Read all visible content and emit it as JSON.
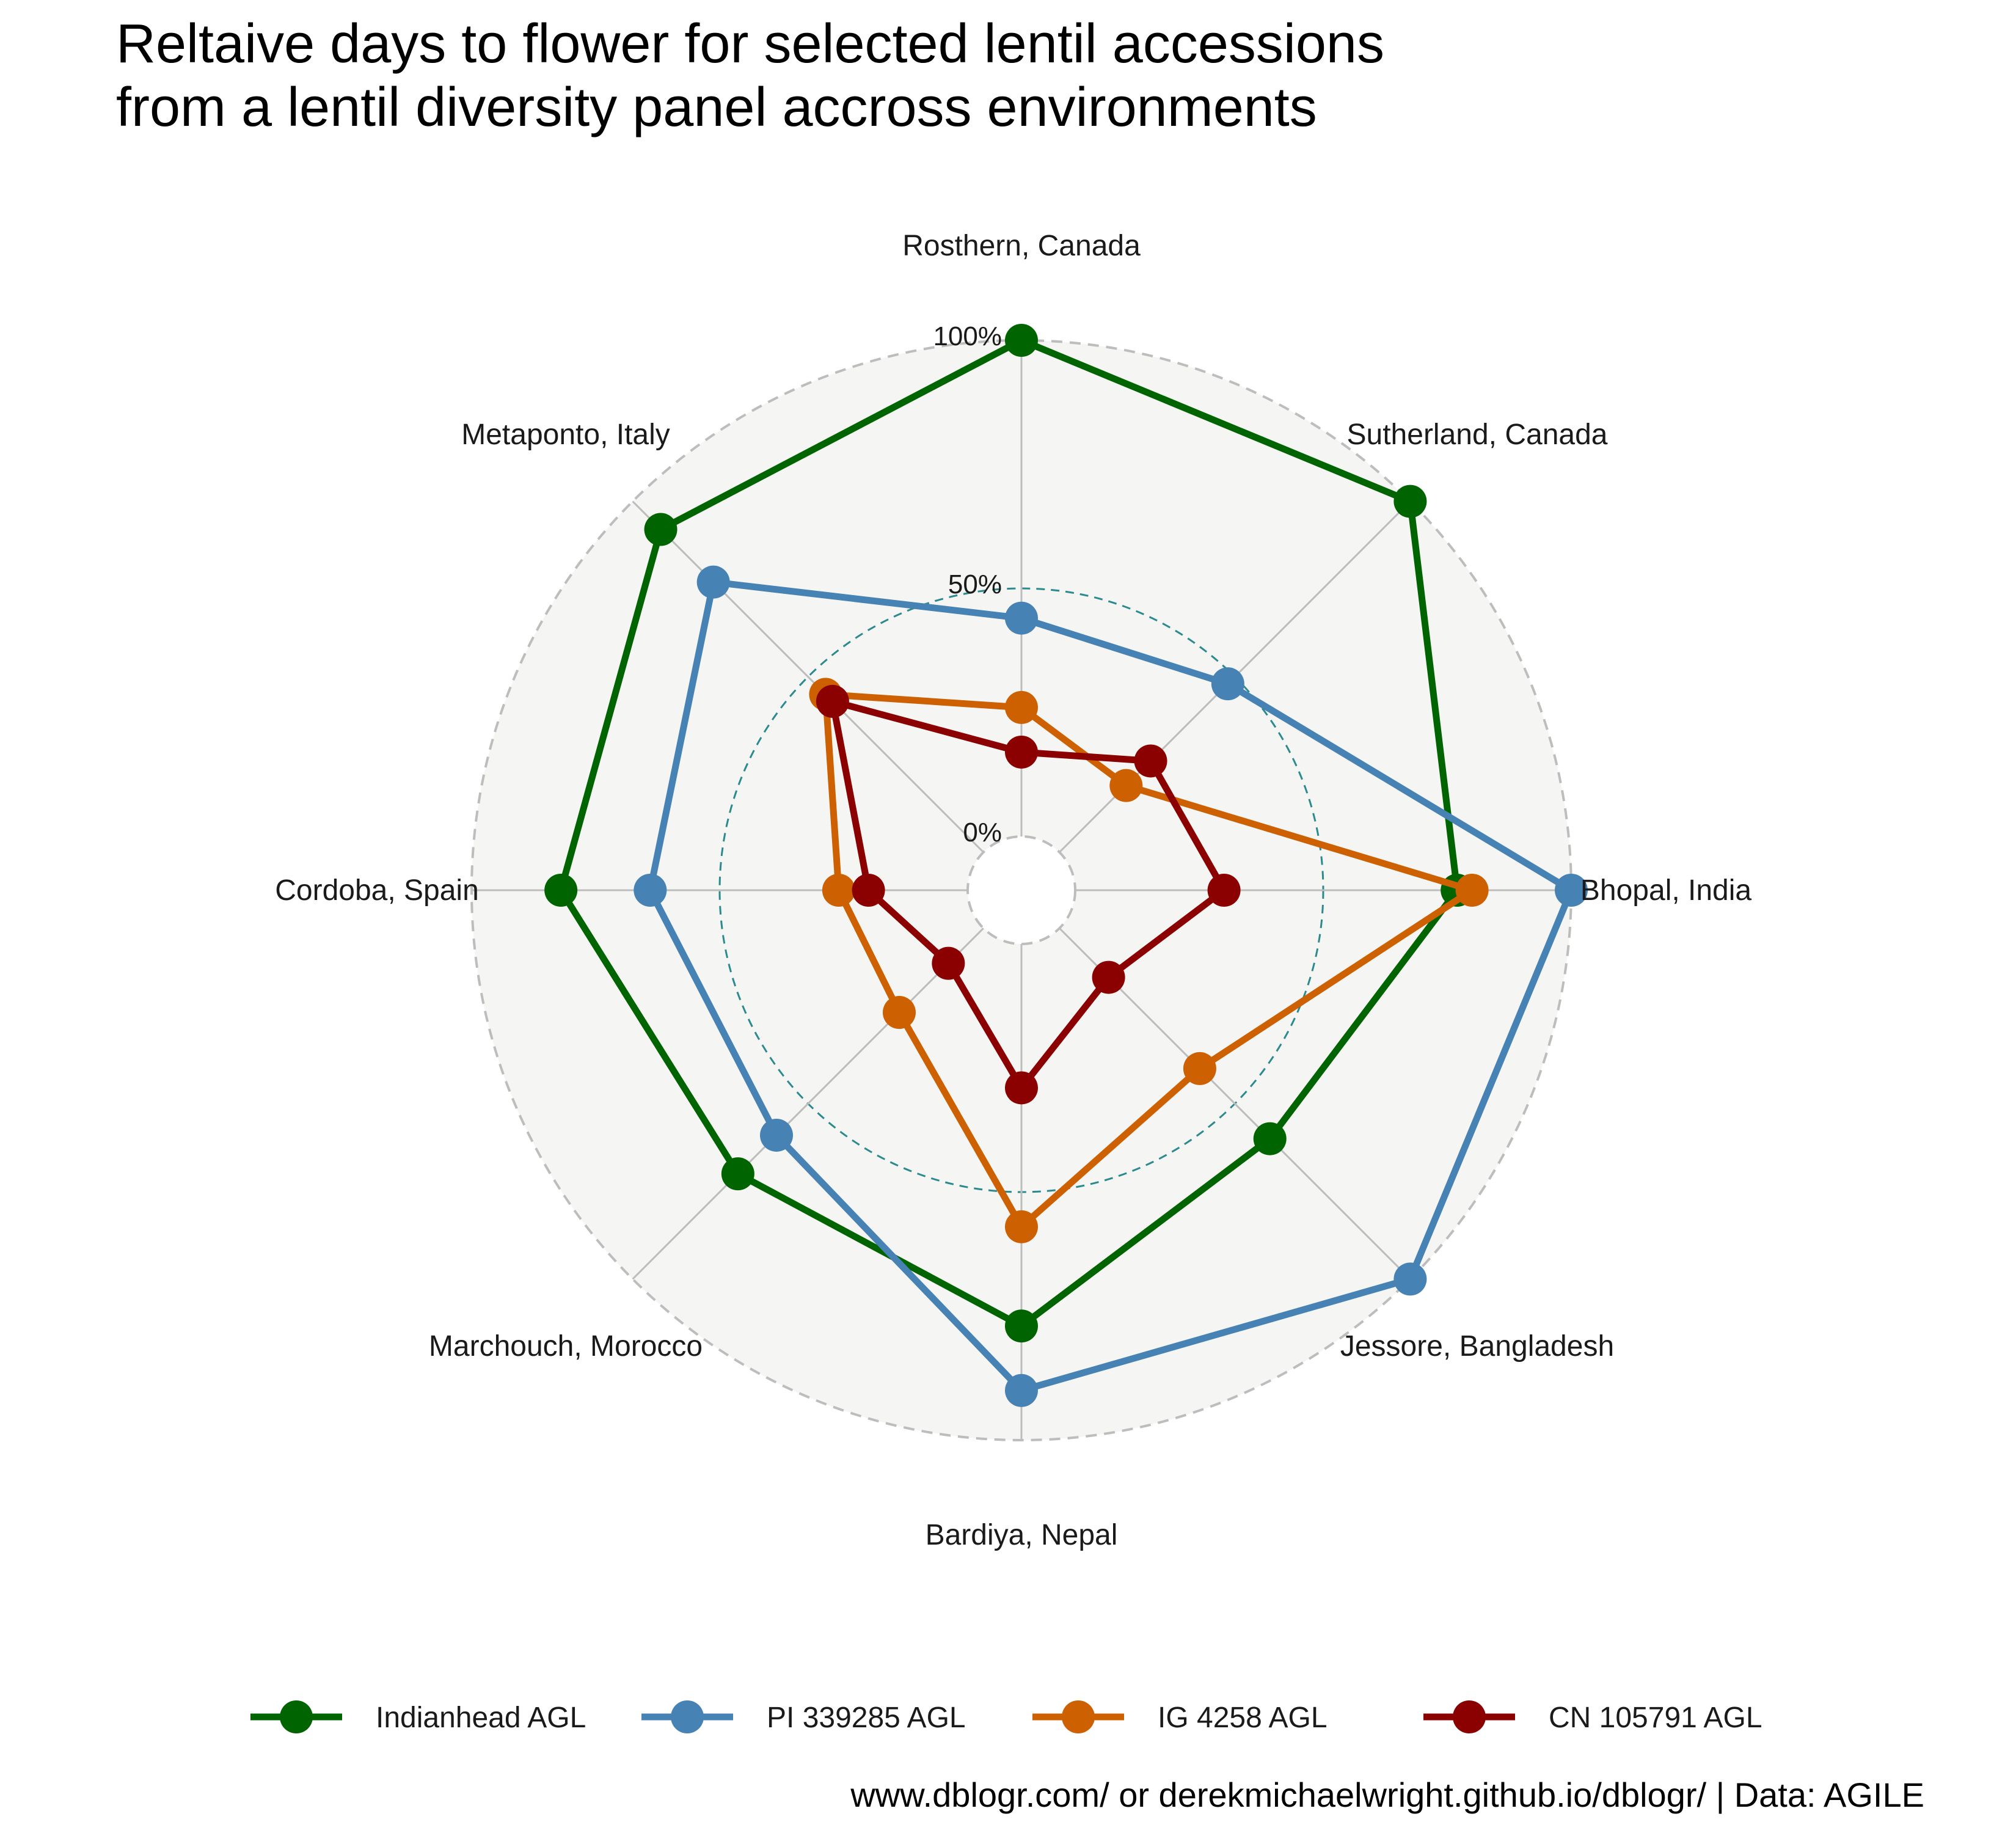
{
  "chart_data": {
    "type": "radar",
    "title": "Reltaive days to flower for selected lentil accessions\nfrom a lentil diversity panel accross environments",
    "caption": "www.dblogr.com/ or derekmichaelwright.github.io/dblogr/ | Data: AGILE",
    "axis_ticks": [
      "0%",
      "50%",
      "100%"
    ],
    "ylim": [
      0,
      100
    ],
    "categories": [
      "Rosthern, Canada",
      "Sutherland, Canada",
      "Bhopal, India",
      "Jessore, Bangladesh",
      "Bardiya, Nepal",
      "Marchouch, Morocco",
      "Cordoba, Spain",
      "Metaponto, Italy"
    ],
    "series": [
      {
        "name": "Indianhead AGL",
        "color": "#006400",
        "values": [
          100,
          100,
          77,
          60,
          77,
          70,
          82,
          92
        ]
      },
      {
        "name": "PI 339285 AGL",
        "color": "#4682b4",
        "values": [
          44,
          48,
          100,
          100,
          90,
          59,
          64,
          77
        ]
      },
      {
        "name": "IG 4258 AGL",
        "color": "#cd6000",
        "values": [
          26,
          19,
          80,
          40,
          57,
          24,
          26,
          45
        ]
      },
      {
        "name": "CN 105791 AGL",
        "color": "#8b0000",
        "values": [
          17,
          26,
          30,
          14,
          29,
          10,
          20,
          43
        ]
      }
    ],
    "legend_position": "bottom",
    "grid": true
  }
}
